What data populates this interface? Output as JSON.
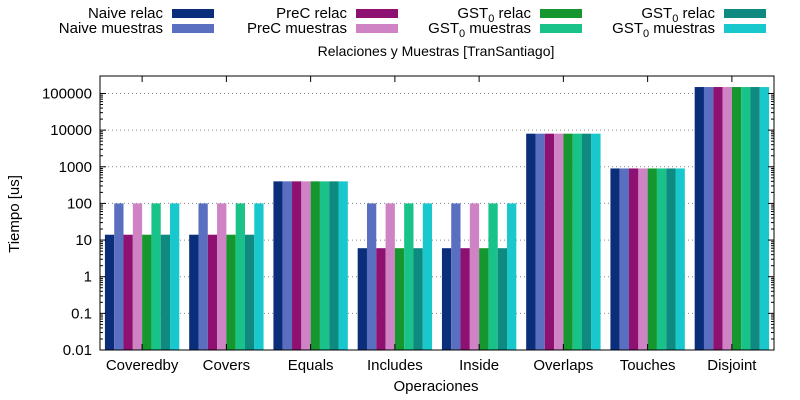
{
  "chart_data": {
    "type": "bar",
    "title": "Relaciones y Muestras [TranSantiago]",
    "xlabel": "Operaciones",
    "ylabel": "Tiempo [us]",
    "yscale": "log",
    "ylim": [
      0.01,
      300000
    ],
    "yticks": [
      "0.01",
      "0.1",
      "1",
      "10",
      "100",
      "1000",
      "10000",
      "100000"
    ],
    "ytick_values": [
      0.01,
      0.1,
      1,
      10,
      100,
      1000,
      10000,
      100000
    ],
    "grid": "horizontal dotted",
    "legend_position": "top",
    "categories": [
      "Coveredby",
      "Covers",
      "Equals",
      "Includes",
      "Inside",
      "Overlaps",
      "Touches",
      "Disjoint"
    ],
    "series": [
      {
        "name": "Naive relac",
        "label_main": "Naive relac",
        "label_sub": "",
        "label_tail": "",
        "color": "#0b2e7a",
        "values": [
          14,
          14,
          400,
          6,
          6,
          8000,
          900,
          150000
        ]
      },
      {
        "name": "Naive muestras",
        "label_main": "Naive muestras",
        "label_sub": "",
        "label_tail": "",
        "color": "#5a6fc0",
        "values": [
          100,
          100,
          400,
          100,
          100,
          8000,
          900,
          150000
        ]
      },
      {
        "name": "PreC relac",
        "label_main": "PreC relac",
        "label_sub": "",
        "label_tail": "",
        "color": "#8e1070",
        "values": [
          14,
          14,
          400,
          6,
          6,
          8000,
          900,
          150000
        ]
      },
      {
        "name": "PreC muestras",
        "label_main": "PreC muestras",
        "label_sub": "",
        "label_tail": "",
        "color": "#cf82c4",
        "values": [
          100,
          100,
          400,
          100,
          100,
          8000,
          900,
          150000
        ]
      },
      {
        "name": "GST0 relac",
        "label_main": "GST",
        "label_sub": "0",
        "label_tail": " relac",
        "color": "#16962e",
        "values": [
          14,
          14,
          400,
          6,
          6,
          8000,
          900,
          150000
        ]
      },
      {
        "name": "GST0 muestras",
        "label_main": "GST",
        "label_sub": "0",
        "label_tail": " muestras",
        "color": "#19c288",
        "values": [
          100,
          100,
          400,
          100,
          100,
          8000,
          900,
          150000
        ]
      },
      {
        "name": "GST0 relac",
        "label_main": "GST",
        "label_sub": "0",
        "label_tail": " relac",
        "color": "#0e8a80",
        "values": [
          14,
          14,
          400,
          6,
          6,
          8000,
          900,
          150000
        ]
      },
      {
        "name": "GST0 muestras",
        "label_main": "GST",
        "label_sub": "0",
        "label_tail": " muestras",
        "color": "#19c8cc",
        "values": [
          100,
          100,
          400,
          100,
          100,
          8000,
          900,
          150000
        ]
      }
    ]
  }
}
